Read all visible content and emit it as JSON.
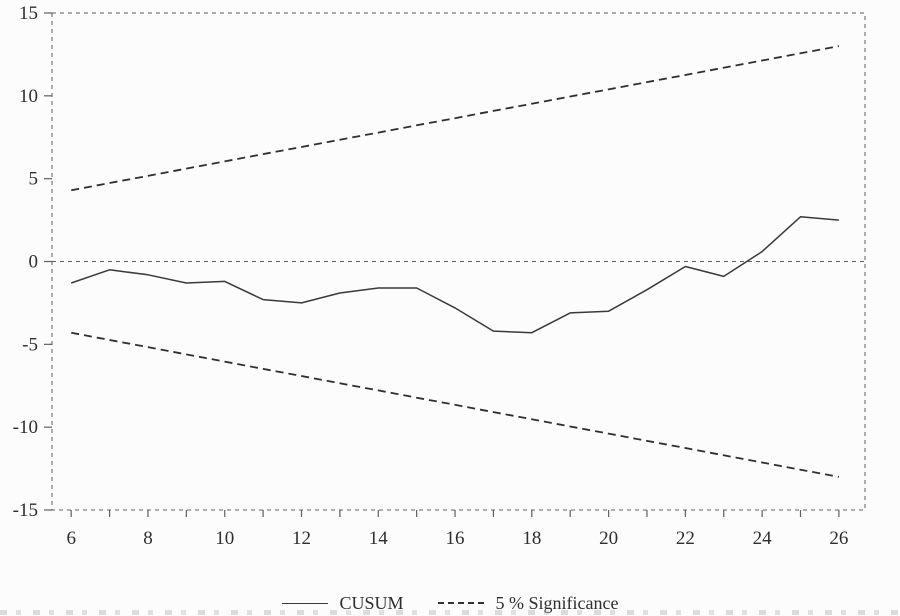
{
  "chart_data": {
    "type": "line",
    "title": "",
    "xlabel": "",
    "ylabel": "",
    "xlim": [
      5.5,
      26.68
    ],
    "ylim": [
      -15,
      15
    ],
    "grid": false,
    "zero_line": 0,
    "x": [
      6,
      7,
      8,
      9,
      10,
      11,
      12,
      13,
      14,
      15,
      16,
      17,
      18,
      19,
      20,
      21,
      22,
      23,
      24,
      25,
      26
    ],
    "series": [
      {
        "name": "CUSUM",
        "style": "solid",
        "values": [
          -1.3,
          -0.5,
          -0.8,
          -1.3,
          -1.2,
          -2.3,
          -2.5,
          -1.9,
          -1.6,
          -1.6,
          -2.8,
          -4.2,
          -4.3,
          -3.1,
          -3.0,
          -1.7,
          -0.3,
          -0.9,
          0.6,
          2.7,
          2.5
        ]
      },
      {
        "name": "5 % Significance (upper)",
        "style": "dashed",
        "values": [
          4.3,
          4.74,
          5.17,
          5.61,
          6.04,
          6.48,
          6.91,
          7.35,
          7.78,
          8.22,
          8.65,
          9.09,
          9.52,
          9.96,
          10.39,
          10.83,
          11.26,
          11.7,
          12.13,
          12.57,
          13.0
        ]
      },
      {
        "name": "5 % Significance (lower)",
        "style": "dashed",
        "values": [
          -4.3,
          -4.74,
          -5.17,
          -5.61,
          -6.04,
          -6.48,
          -6.91,
          -7.35,
          -7.78,
          -8.22,
          -8.65,
          -9.09,
          -9.52,
          -9.96,
          -10.39,
          -10.83,
          -11.26,
          -11.7,
          -12.13,
          -12.57,
          -13.0
        ]
      }
    ],
    "y_ticks": [
      15,
      10,
      5,
      0,
      -5,
      -10,
      -15
    ],
    "x_ticks_minor": [
      6,
      7,
      8,
      9,
      10,
      11,
      12,
      13,
      14,
      15,
      16,
      17,
      18,
      19,
      20,
      21,
      22,
      23,
      24,
      25,
      26
    ],
    "x_ticks_labeled": [
      6,
      8,
      10,
      12,
      14,
      16,
      18,
      20,
      22,
      24,
      26
    ],
    "legend": [
      {
        "label": "CUSUM",
        "style": "solid"
      },
      {
        "label": "5 % Significance",
        "style": "dashed"
      }
    ],
    "colors": {
      "cusum_line": "#3a3a3a",
      "significance_line": "#2f2f2f",
      "frame": "#5f5f5f",
      "text": "#2e2e2e"
    },
    "legend_position": "bottom-center"
  }
}
